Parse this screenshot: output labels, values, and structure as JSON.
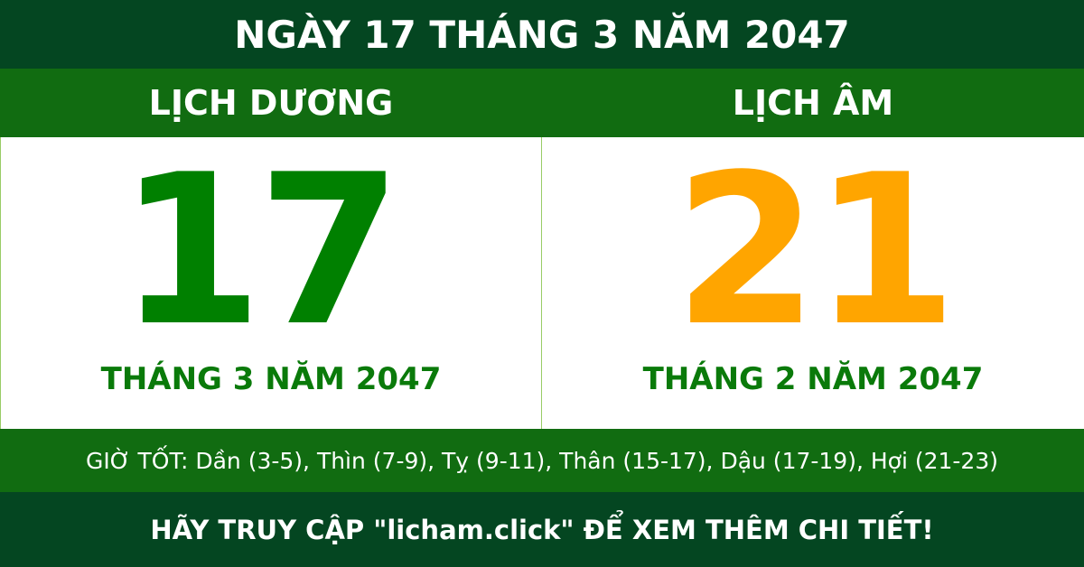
{
  "title": "NGÀY 17 THÁNG 3 NĂM 2047",
  "solar": {
    "label": "LỊCH DƯƠNG",
    "day": "17",
    "month_year": "THÁNG 3 NĂM 2047"
  },
  "lunar": {
    "label": "LỊCH ÂM",
    "day": "21",
    "month_year": "THÁNG 2 NĂM 2047"
  },
  "good_hours": "GIỜ TỐT: Dần (3-5), Thìn (7-9), Tỵ (9-11), Thân (15-17), Dậu (17-19), Hợi (21-23)",
  "footer": "HÃY TRUY CẬP \"licham.click\" ĐỂ XEM THÊM CHI TIẾT!",
  "colors": {
    "dark_green": "#044621",
    "band_green": "#116c11",
    "solar_day": "#008000",
    "lunar_day": "#ffa500"
  }
}
